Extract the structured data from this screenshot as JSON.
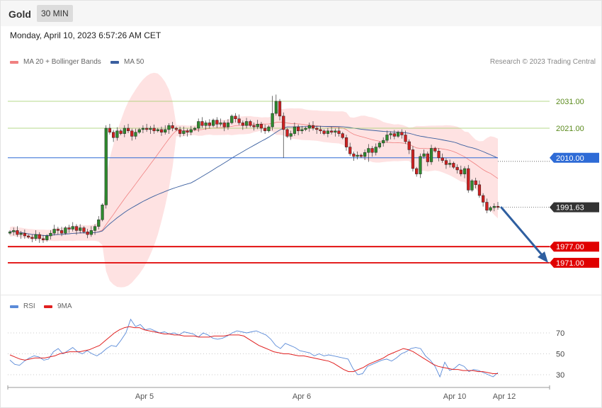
{
  "header": {
    "instrument": "Gold",
    "timeframe": "30 MIN"
  },
  "timestamp": "Monday, April 10, 2023 6:57:26 AM CET",
  "legend_main": [
    {
      "label": "MA 20 + Bollinger Bands",
      "color": "#f08080"
    },
    {
      "label": "MA 50",
      "color": "#3a5f9f"
    }
  ],
  "credit": "Research © 2023 Trading Central",
  "legend_rsi": [
    {
      "label": "RSI",
      "color": "#5b8bd8"
    },
    {
      "label": "9MA",
      "color": "#e02020"
    }
  ],
  "colors": {
    "up": "#2e8b2e",
    "down": "#d02020",
    "bb_fill": "#fdd8d8",
    "ma20": "#f08080",
    "ma50": "#3a5f9f",
    "arrow": "#2f5fa0"
  },
  "chart_data": [
    {
      "type": "candlestick",
      "ylim": [
        1966,
        2040
      ],
      "x_ticks": [
        "Apr 5",
        "Apr 6",
        "Apr 10",
        "Apr 12"
      ],
      "levels": [
        {
          "value": 2031.0,
          "label": "2031.00",
          "style": "resistance"
        },
        {
          "value": 2021.0,
          "label": "2021.00",
          "style": "resistance"
        },
        {
          "value": 2010.0,
          "label": "2010.00",
          "style": "pivot"
        },
        {
          "value": 1991.63,
          "label": "1991.63",
          "style": "last"
        },
        {
          "value": 1977.0,
          "label": "1977.00",
          "style": "support"
        },
        {
          "value": 1971.0,
          "label": "1971.00",
          "style": "support"
        }
      ],
      "close": [
        1982.5,
        1983.0,
        1981.5,
        1982.0,
        1981.0,
        1980.5,
        1980.0,
        1981.5,
        1980.0,
        1979.5,
        1981.0,
        1982.0,
        1983.5,
        1983.0,
        1982.0,
        1984.0,
        1983.5,
        1984.5,
        1983.0,
        1984.0,
        1982.5,
        1981.5,
        1983.0,
        1984.5,
        1987.0,
        1992.5,
        2021.0,
        2019.5,
        2017.5,
        2020.0,
        2019.0,
        2021.0,
        2020.0,
        2018.0,
        2019.5,
        2020.5,
        2021.0,
        2020.5,
        2021.0,
        2020.0,
        2020.5,
        2019.5,
        2020.5,
        2022.0,
        2021.0,
        2020.5,
        2019.0,
        2020.0,
        2019.5,
        2020.5,
        2021.0,
        2023.5,
        2022.0,
        2023.0,
        2022.0,
        2024.0,
        2022.5,
        2023.0,
        2021.5,
        2023.0,
        2025.5,
        2024.5,
        2023.0,
        2022.0,
        2023.5,
        2022.0,
        2021.5,
        2022.5,
        2021.0,
        2020.0,
        2021.5,
        2026.5,
        2031.0,
        2025.5,
        2020.5,
        2018.0,
        2019.0,
        2021.5,
        2020.0,
        2020.5,
        2021.0,
        2022.0,
        2021.0,
        2020.5,
        2020.0,
        2019.0,
        2020.0,
        2019.5,
        2020.0,
        2019.0,
        2017.5,
        2014.0,
        2011.5,
        2010.5,
        2011.0,
        2010.5,
        2012.0,
        2013.5,
        2012.0,
        2014.0,
        2015.5,
        2016.5,
        2018.5,
        2019.0,
        2018.0,
        2019.5,
        2018.5,
        2016.0,
        2013.0,
        2006.0,
        2004.0,
        2010.5,
        2011.5,
        2008.5,
        2013.5,
        2012.5,
        2010.0,
        2009.0,
        2007.5,
        2008.0,
        2006.5,
        2005.5,
        2004.0,
        2006.0,
        1998.0,
        2001.5,
        2000.0,
        1996.0,
        1993.5,
        1990.5,
        1991.5,
        1992.0,
        1991.6
      ],
      "rsi": {
        "ylim": [
          20,
          90
        ],
        "levels": [
          70,
          50,
          30
        ],
        "values": [
          44,
          40,
          39,
          43,
          46,
          48,
          47,
          44,
          45,
          52,
          55,
          50,
          53,
          56,
          52,
          50,
          53,
          50,
          48,
          51,
          55,
          58,
          57,
          63,
          70,
          83,
          76,
          78,
          73,
          74,
          72,
          70,
          71,
          69,
          70,
          68,
          71,
          70,
          69,
          66,
          70,
          68,
          65,
          64,
          65,
          67,
          70,
          72,
          71,
          70,
          71,
          72,
          70,
          68,
          64,
          58,
          55,
          60,
          58,
          56,
          53,
          52,
          51,
          48,
          50,
          48,
          49,
          48,
          47,
          46,
          45,
          36,
          30,
          31,
          38,
          40,
          42,
          44,
          45,
          43,
          46,
          50,
          52,
          55,
          56,
          55,
          48,
          44,
          38,
          28,
          42,
          34,
          36,
          40,
          38,
          33,
          35,
          34,
          32,
          30,
          28,
          32
        ],
        "ma9": [
          49,
          47,
          45,
          44,
          45,
          46,
          46,
          46,
          47,
          48,
          50,
          51,
          52,
          52,
          52,
          53,
          54,
          56,
          58,
          62,
          66,
          70,
          73,
          75,
          76,
          75,
          75,
          73,
          72,
          71,
          70,
          69,
          69,
          68,
          68,
          67,
          67,
          67,
          66,
          66,
          66,
          67,
          67,
          67,
          68,
          68,
          68,
          67,
          64,
          61,
          58,
          56,
          54,
          52,
          51,
          50,
          50,
          49,
          48,
          48,
          47,
          46,
          45,
          44,
          43,
          41,
          38,
          35,
          33,
          33,
          35,
          37,
          40,
          42,
          44,
          46,
          49,
          51,
          53,
          55,
          54,
          52,
          49,
          46,
          43,
          40,
          38,
          37,
          36,
          35,
          35,
          34,
          34,
          34,
          33,
          33,
          32,
          31,
          31
        ]
      }
    }
  ]
}
